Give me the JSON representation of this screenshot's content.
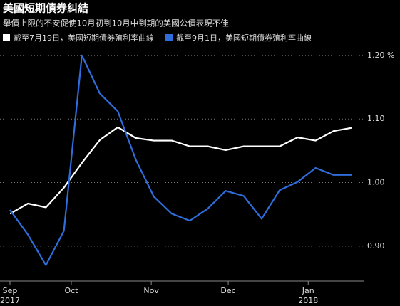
{
  "chart_data": {
    "type": "line",
    "title": "美國短期債券糾結",
    "subtitle": "舉債上限的不安促使10月初到10月中到期的美國公債表現不佳",
    "x": [
      0,
      1,
      2,
      3,
      4,
      5,
      6,
      7,
      8,
      9,
      10,
      11,
      12,
      13,
      14,
      15,
      16,
      17,
      18,
      19
    ],
    "series": [
      {
        "name": "截至7月19日，美國短期債券殖利率曲線",
        "color": "#ffffff",
        "values": [
          0.951,
          0.967,
          0.961,
          0.992,
          1.031,
          1.067,
          1.087,
          1.07,
          1.066,
          1.066,
          1.057,
          1.057,
          1.051,
          1.057,
          1.057,
          1.057,
          1.071,
          1.066,
          1.081,
          1.086
        ]
      },
      {
        "name": "截至9月1日，美國短期債券殖利率曲線",
        "color": "#2f6ddb",
        "values": [
          0.957,
          0.918,
          0.87,
          0.924,
          1.2,
          1.14,
          1.112,
          1.036,
          0.978,
          0.951,
          0.94,
          0.959,
          0.987,
          0.979,
          0.943,
          0.988,
          1.001,
          1.023,
          1.012,
          1.012
        ]
      }
    ],
    "xlim": [
      0,
      19
    ],
    "xticks": [
      {
        "value": 0,
        "label": "Sep"
      },
      {
        "value": 3.41,
        "label": "Oct"
      },
      {
        "value": 7.86,
        "label": "Nov"
      },
      {
        "value": 12.14,
        "label": "Dec"
      },
      {
        "value": 16.59,
        "label": "Jan"
      }
    ],
    "x_year_labels": [
      {
        "value": 0,
        "label": "2017"
      },
      {
        "value": 16.59,
        "label": "2018"
      }
    ],
    "ylim": [
      0.845,
      1.22
    ],
    "yticks": [
      {
        "value": 0.9,
        "label": "0.90"
      },
      {
        "value": 1.0,
        "label": "1.00"
      },
      {
        "value": 1.1,
        "label": "1.10"
      },
      {
        "value": 1.2,
        "label": "1.20 %"
      }
    ],
    "grid": true
  }
}
